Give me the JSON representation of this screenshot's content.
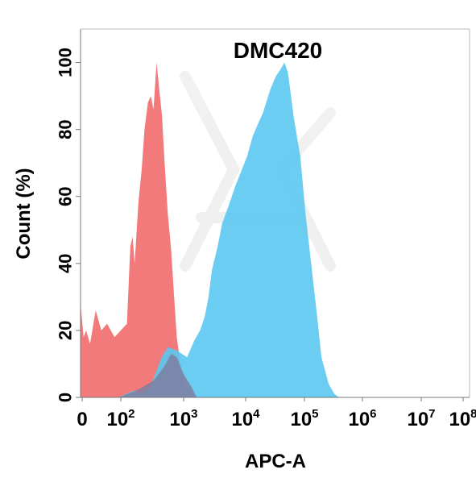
{
  "chart_data": {
    "type": "area",
    "title": "DMC420",
    "xlabel": "APC-A",
    "ylabel": "Count  (%)",
    "x_scale": "biexponential",
    "xlim": [
      -10,
      100000000
    ],
    "ylim": [
      0,
      110
    ],
    "y_ticks": [
      0,
      20,
      40,
      60,
      80,
      100
    ],
    "x_ticks": [
      {
        "base": "0",
        "exp": ""
      },
      {
        "base": "10",
        "exp": "2"
      },
      {
        "base": "10",
        "exp": "3"
      },
      {
        "base": "10",
        "exp": "4"
      },
      {
        "base": "10",
        "exp": "5"
      },
      {
        "base": "10",
        "exp": "6"
      },
      {
        "base": "10",
        "exp": "7"
      },
      {
        "base": "10",
        "exp": "8"
      }
    ],
    "series": [
      {
        "color": "#f26b6b",
        "points": [
          [
            0,
            28
          ],
          [
            8,
            18
          ],
          [
            15,
            20
          ],
          [
            25,
            16
          ],
          [
            40,
            26
          ],
          [
            55,
            20
          ],
          [
            70,
            22
          ],
          [
            90,
            18
          ],
          [
            110,
            20
          ],
          [
            140,
            22
          ],
          [
            160,
            45
          ],
          [
            175,
            48
          ],
          [
            190,
            40
          ],
          [
            220,
            58
          ],
          [
            250,
            68
          ],
          [
            280,
            80
          ],
          [
            320,
            88
          ],
          [
            360,
            90
          ],
          [
            400,
            86
          ],
          [
            450,
            100
          ],
          [
            500,
            92
          ],
          [
            560,
            84
          ],
          [
            620,
            70
          ],
          [
            700,
            55
          ],
          [
            800,
            44
          ],
          [
            900,
            30
          ],
          [
            1000,
            18
          ],
          [
            1200,
            8
          ],
          [
            1500,
            2
          ],
          [
            2000,
            0
          ]
        ]
      },
      {
        "color": "#5bc8ef",
        "points": [
          [
            100,
            0
          ],
          [
            180,
            2
          ],
          [
            250,
            1
          ],
          [
            350,
            3
          ],
          [
            450,
            8
          ],
          [
            550,
            12
          ],
          [
            700,
            15
          ],
          [
            1000,
            14
          ],
          [
            1500,
            12
          ],
          [
            2000,
            17
          ],
          [
            2500,
            20
          ],
          [
            3000,
            24
          ],
          [
            3500,
            30
          ],
          [
            4000,
            38
          ],
          [
            5000,
            45
          ],
          [
            6000,
            52
          ],
          [
            8000,
            58
          ],
          [
            10000,
            63
          ],
          [
            13000,
            68
          ],
          [
            16000,
            72
          ],
          [
            20000,
            78
          ],
          [
            25000,
            82
          ],
          [
            30000,
            85
          ],
          [
            40000,
            92
          ],
          [
            50000,
            96
          ],
          [
            60000,
            98
          ],
          [
            70000,
            100
          ],
          [
            80000,
            97
          ],
          [
            100000,
            84
          ],
          [
            130000,
            72
          ],
          [
            160000,
            55
          ],
          [
            200000,
            40
          ],
          [
            250000,
            25
          ],
          [
            300000,
            12
          ],
          [
            400000,
            4
          ],
          [
            500000,
            1
          ],
          [
            600000,
            0
          ]
        ]
      },
      {
        "color": "#7d7fa1",
        "points": [
          [
            100,
            0
          ],
          [
            200,
            2
          ],
          [
            400,
            5
          ],
          [
            600,
            9
          ],
          [
            800,
            13
          ],
          [
            1000,
            12
          ],
          [
            1300,
            7
          ],
          [
            1800,
            3
          ],
          [
            2200,
            0
          ]
        ]
      }
    ],
    "grid": false,
    "legend": "none"
  }
}
